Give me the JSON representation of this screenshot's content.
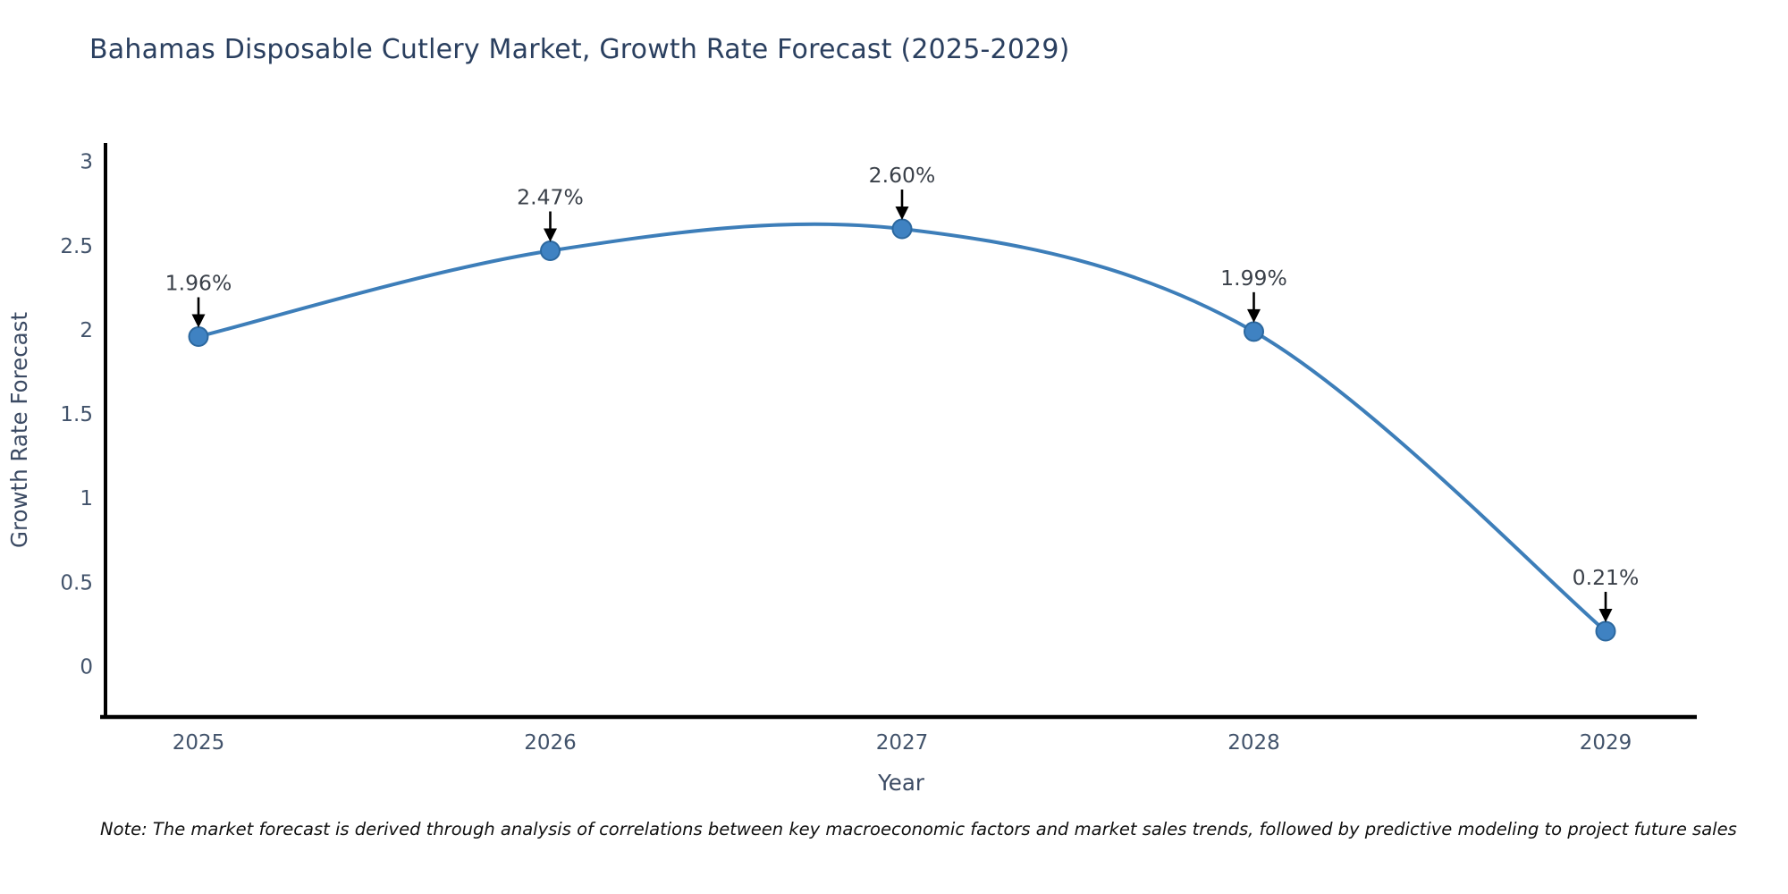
{
  "title": "Bahamas Disposable Cutlery Market, Growth Rate Forecast (2025-2029)",
  "footnote": "Note: The market forecast is derived through analysis of correlations between key macroeconomic factors and market sales trends, followed by predictive modeling to project future sales",
  "chart_data": {
    "type": "line",
    "categories": [
      "2025",
      "2026",
      "2027",
      "2028",
      "2029"
    ],
    "values": [
      1.96,
      2.47,
      2.6,
      1.99,
      0.21
    ],
    "point_labels": [
      "1.96%",
      "2.47%",
      "2.60%",
      "1.99%",
      "0.21%"
    ],
    "title": "Bahamas Disposable Cutlery Market, Growth Rate Forecast (2025-2029)",
    "xlabel": "Year",
    "ylabel": "Growth Rate Forecast",
    "ytick_labels": [
      "0",
      "0.5",
      "1",
      "1.5",
      "2",
      "2.5",
      "3"
    ],
    "ytick_values": [
      0,
      0.5,
      1,
      1.5,
      2,
      2.5,
      3
    ],
    "ylim": [
      -0.3,
      3.11
    ],
    "grid": false,
    "legend_position": "none",
    "smooth": true,
    "colors": {
      "line": "#3d7eb9",
      "marker_fill": "#3f82c2",
      "marker_edge": "#2c689f",
      "axis": "#000000",
      "arrow": "#000000",
      "tick_text": "#42536b",
      "axis_title_text": "#3b4a63",
      "annotation_text": "#3a4049",
      "chart_title_text": "#2a3f5f"
    }
  }
}
